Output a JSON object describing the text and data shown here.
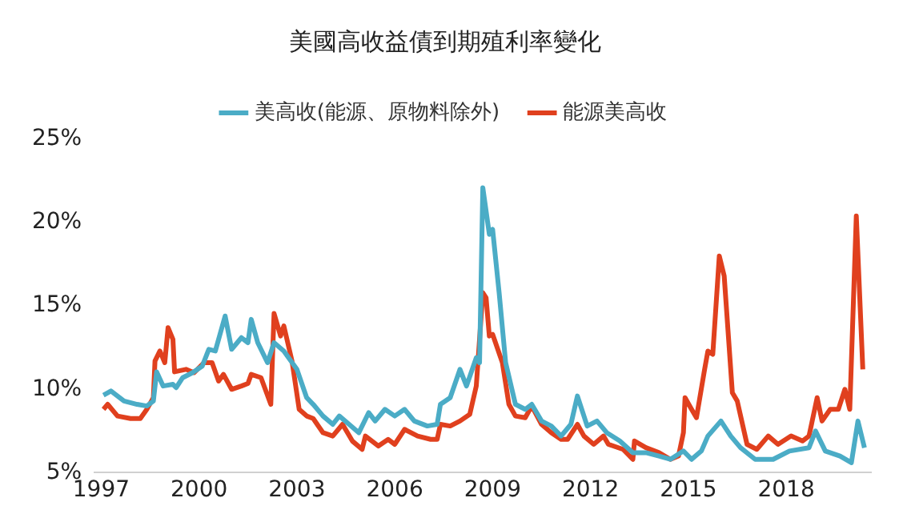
{
  "chart_data": {
    "type": "line",
    "title": "美國高收益債到期殖利率變化",
    "legend": "top",
    "grid": false,
    "marker": "none",
    "line_style": "solid",
    "xlim": [
      1996.8,
      2020.6
    ],
    "xticks": [
      1997,
      2000,
      2003,
      2006,
      2009,
      2012,
      2015,
      2018
    ],
    "ylim": [
      5,
      25
    ],
    "yticks": [
      {
        "value": 5,
        "label": "5%"
      },
      {
        "value": 10,
        "label": "10%"
      },
      {
        "value": 15,
        "label": "15%"
      },
      {
        "value": 20,
        "label": "20%"
      },
      {
        "value": 25,
        "label": "25%"
      }
    ],
    "series": [
      {
        "name": "美高收(能源、原物料除外)",
        "color": "#4bacc6",
        "x": [
          1997.07,
          1997.3,
          1997.7,
          1998.1,
          1998.4,
          1998.6,
          1998.7,
          1998.9,
          1999.2,
          1999.3,
          1999.5,
          1999.8,
          2000.1,
          2000.3,
          2000.5,
          2000.8,
          2001.0,
          2001.3,
          2001.5,
          2001.6,
          2001.8,
          2002.1,
          2002.3,
          2002.6,
          2003.0,
          2003.3,
          2003.5,
          2003.8,
          2004.1,
          2004.3,
          2004.6,
          2004.9,
          2005.2,
          2005.4,
          2005.7,
          2006.0,
          2006.3,
          2006.6,
          2007.0,
          2007.3,
          2007.4,
          2007.7,
          2008.0,
          2008.2,
          2008.5,
          2008.6,
          2008.7,
          2008.9,
          2009.0,
          2009.2,
          2009.4,
          2009.7,
          2010.0,
          2010.2,
          2010.5,
          2010.8,
          2011.1,
          2011.4,
          2011.6,
          2011.8,
          2011.9,
          2012.2,
          2012.5,
          2012.9,
          2013.3,
          2013.7,
          2014.1,
          2014.45,
          2014.85,
          2015.1,
          2015.4,
          2015.6,
          2016.0,
          2016.3,
          2016.6,
          2017.05,
          2017.6,
          2018.1,
          2018.7,
          2018.9,
          2019.2,
          2019.65,
          2020.0,
          2020.2,
          2020.4
        ],
        "values": [
          9.65,
          9.9,
          9.3,
          9.1,
          9.0,
          9.3,
          11.05,
          10.2,
          10.3,
          10.1,
          10.7,
          11.0,
          11.4,
          12.4,
          12.3,
          14.4,
          12.4,
          13.1,
          12.8,
          14.2,
          12.8,
          11.6,
          12.8,
          12.3,
          11.2,
          9.5,
          9.1,
          8.4,
          7.9,
          8.4,
          7.9,
          7.4,
          8.6,
          8.1,
          8.8,
          8.4,
          8.8,
          8.1,
          7.8,
          7.9,
          9.1,
          9.5,
          11.2,
          10.2,
          11.9,
          11.6,
          22.1,
          19.3,
          19.6,
          15.8,
          11.6,
          9.1,
          8.8,
          9.1,
          8.1,
          7.8,
          7.2,
          7.9,
          9.6,
          8.4,
          7.8,
          8.1,
          7.4,
          6.9,
          6.2,
          6.2,
          6.0,
          5.8,
          6.3,
          5.8,
          6.3,
          7.2,
          8.1,
          7.2,
          6.5,
          5.8,
          5.8,
          6.3,
          6.5,
          7.5,
          6.3,
          6.0,
          5.6,
          8.1,
          6.5
        ]
      },
      {
        "name": "能源美高收",
        "color": "#e0401e",
        "x": [
          1997.07,
          1997.2,
          1997.5,
          1997.9,
          1998.2,
          1998.4,
          1998.6,
          1998.65,
          1998.8,
          1998.95,
          1999.05,
          1999.2,
          1999.25,
          1999.6,
          1999.85,
          2000.15,
          2000.4,
          2000.6,
          2000.75,
          2001.0,
          2001.3,
          2001.5,
          2001.6,
          2001.9,
          2002.2,
          2002.3,
          2002.5,
          2002.6,
          2002.85,
          2003.07,
          2003.3,
          2003.5,
          2003.8,
          2004.1,
          2004.4,
          2004.7,
          2005.0,
          2005.1,
          2005.5,
          2005.8,
          2006.0,
          2006.3,
          2006.7,
          2007.1,
          2007.3,
          2007.4,
          2007.7,
          2008.0,
          2008.3,
          2008.5,
          2008.7,
          2008.8,
          2008.9,
          2009.0,
          2009.3,
          2009.5,
          2009.7,
          2010.0,
          2010.2,
          2010.5,
          2010.8,
          2011.1,
          2011.3,
          2011.6,
          2011.8,
          2012.1,
          2012.4,
          2012.55,
          2013.0,
          2013.3,
          2013.35,
          2013.7,
          2014.1,
          2014.45,
          2014.7,
          2014.85,
          2014.9,
          2015.1,
          2015.25,
          2015.5,
          2015.6,
          2015.75,
          2015.95,
          2016.1,
          2016.35,
          2016.5,
          2016.8,
          2017.1,
          2017.45,
          2017.75,
          2018.15,
          2018.5,
          2018.7,
          2018.95,
          2019.1,
          2019.35,
          2019.6,
          2019.8,
          2019.95,
          2020.15,
          2020.35
        ],
        "values": [
          8.8,
          9.1,
          8.4,
          8.25,
          8.25,
          8.8,
          9.5,
          11.7,
          12.3,
          11.6,
          13.7,
          13.0,
          11.05,
          11.2,
          11.0,
          11.6,
          11.6,
          10.5,
          10.9,
          10.0,
          10.2,
          10.35,
          10.9,
          10.7,
          9.1,
          14.55,
          13.2,
          13.8,
          11.7,
          8.8,
          8.4,
          8.25,
          7.4,
          7.2,
          7.9,
          6.9,
          6.4,
          7.2,
          6.6,
          7.0,
          6.7,
          7.6,
          7.2,
          7.0,
          7.0,
          7.9,
          7.8,
          8.1,
          8.5,
          10.2,
          15.8,
          15.5,
          13.2,
          13.3,
          11.6,
          9.1,
          8.4,
          8.3,
          9.0,
          7.9,
          7.4,
          7.0,
          7.0,
          7.9,
          7.2,
          6.7,
          7.2,
          6.7,
          6.4,
          5.8,
          6.9,
          6.5,
          6.2,
          5.8,
          6.0,
          7.4,
          9.5,
          8.8,
          8.3,
          11.2,
          12.3,
          12.1,
          18.0,
          16.8,
          9.8,
          9.3,
          6.7,
          6.4,
          7.2,
          6.7,
          7.2,
          6.9,
          7.2,
          9.5,
          8.1,
          8.8,
          8.8,
          10.0,
          8.8,
          20.4,
          11.2
        ]
      }
    ]
  }
}
